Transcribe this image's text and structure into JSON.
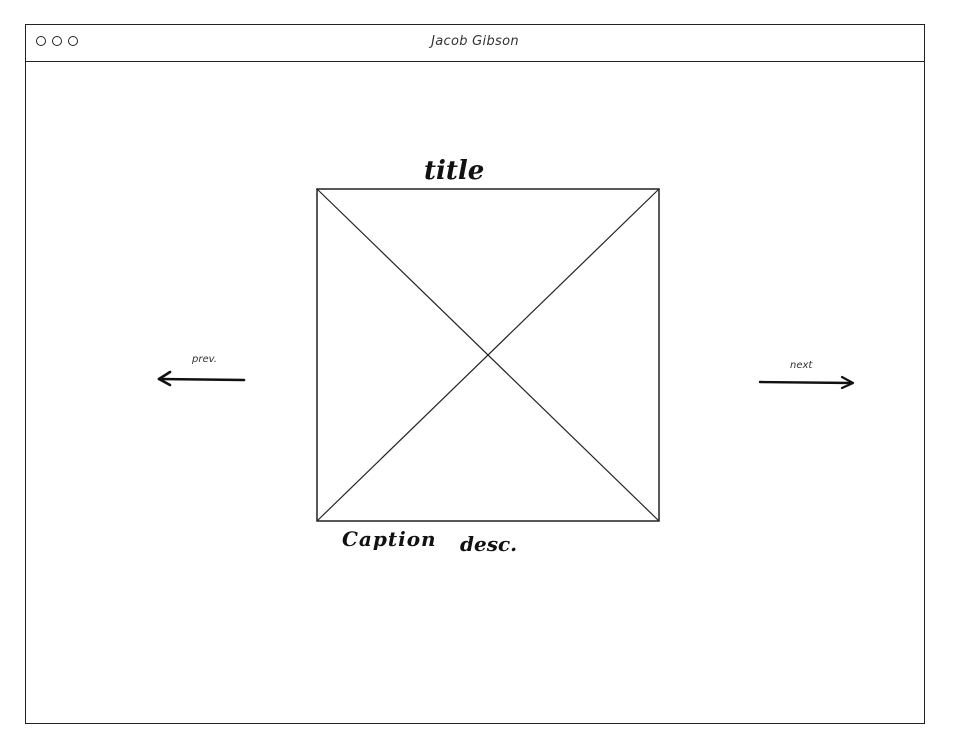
{
  "window": {
    "title": "Jacob Gibson",
    "controls": [
      "close-dot",
      "minimize-dot",
      "maximize-dot"
    ]
  },
  "slide": {
    "title": "title",
    "caption": "Caption",
    "description": "desc.",
    "image_icon": "image-placeholder-icon"
  },
  "navigation": {
    "prev_label": "prev.",
    "next_label": "next",
    "prev_icon": "arrow-left-icon",
    "next_icon": "arrow-right-icon"
  }
}
